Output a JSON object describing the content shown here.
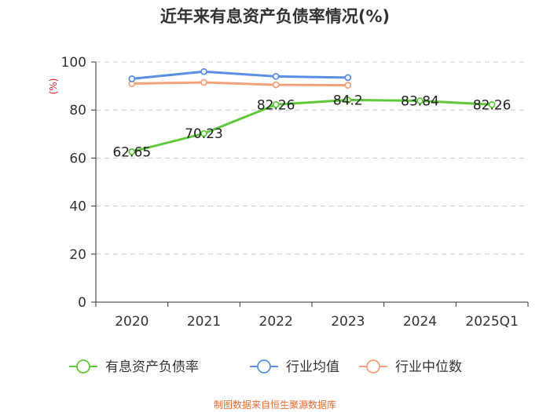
{
  "title": "近年来有息资产负债率情况(%)",
  "source": "制图数据来自恒生聚源数据库",
  "colors": {
    "debt_ratio": "#5fc93a",
    "industry_avg": "#5b8ee6",
    "industry_median": "#f4a07a",
    "axis": "#333333",
    "grid": "#cccccc",
    "unit": "#e8141b",
    "source": "#e86b2f"
  },
  "chart_data": {
    "type": "line",
    "title": "近年来有息资产负债率情况(%)",
    "ylabel": "(%)",
    "xlabel": "",
    "ylim": [
      0,
      100
    ],
    "yticks": [
      0,
      20,
      40,
      60,
      80,
      100
    ],
    "categories": [
      "2020",
      "2021",
      "2022",
      "2023",
      "2024",
      "2025Q1"
    ],
    "series": [
      {
        "name": "有息资产负债率",
        "key": "debt_ratio",
        "values": [
          62.65,
          70.23,
          82.26,
          84.2,
          83.84,
          82.26
        ],
        "labels": [
          "62.65",
          "70.23",
          "82.26",
          "84.2",
          "83.84",
          "82.26"
        ]
      },
      {
        "name": "行业均值",
        "key": "industry_avg",
        "values": [
          93.0,
          96.0,
          94.0,
          93.5,
          null,
          null
        ]
      },
      {
        "name": "行业中位数",
        "key": "industry_median",
        "values": [
          91.0,
          91.5,
          90.5,
          90.3,
          null,
          null
        ]
      }
    ],
    "legend_position": "bottom",
    "grid": true
  }
}
